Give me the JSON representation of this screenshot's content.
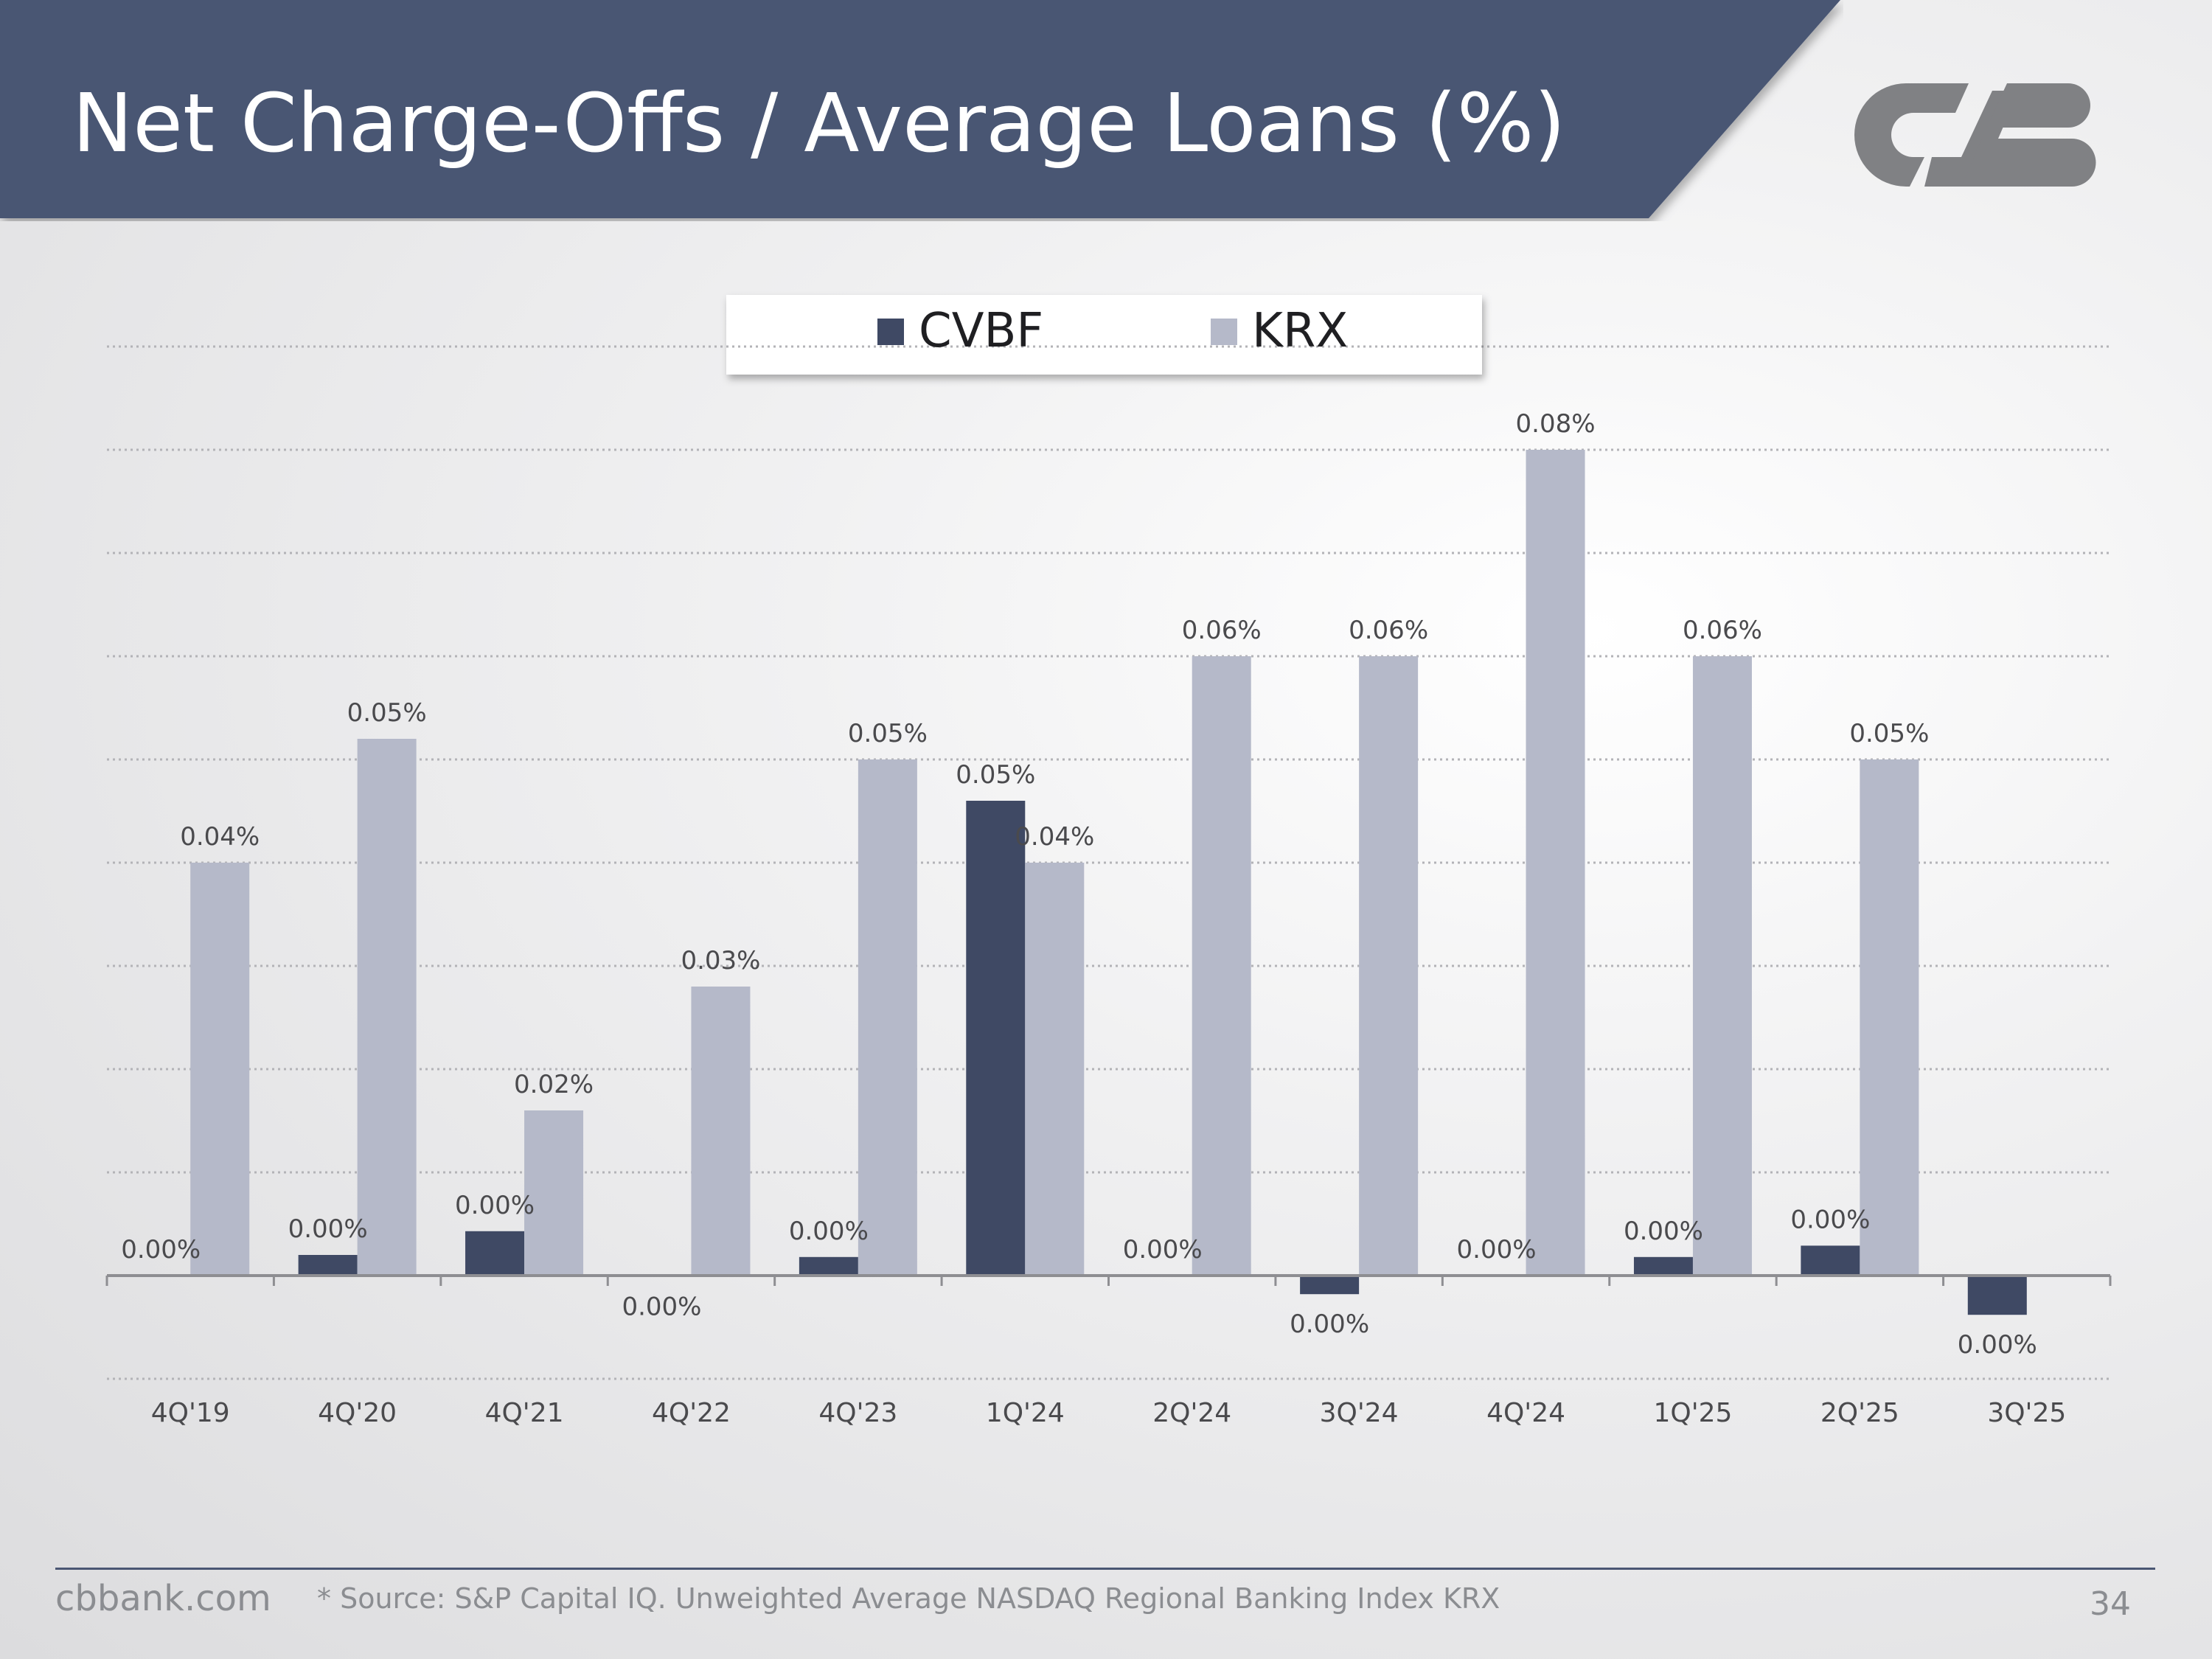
{
  "slide": {
    "title": "Net Charge-Offs / Average Loans (%)",
    "footer_site": "cbbank.com",
    "footer_source": "* Source: S&P Capital IQ. Unweighted Average NASDAQ Regional Banking Index KRX",
    "page_number": "34",
    "logo": "cvb-logo",
    "colors": {
      "banner": "#4a5673",
      "logo": "#808184"
    }
  },
  "chart_data": {
    "type": "bar",
    "categories": [
      "4Q'19",
      "4Q'20",
      "4Q'21",
      "4Q'22",
      "4Q'23",
      "1Q'24",
      "2Q'24",
      "3Q'24",
      "4Q'24",
      "1Q'25",
      "2Q'25",
      "3Q'25"
    ],
    "series": [
      {
        "name": "CVBF",
        "color": "#3f4964",
        "values": [
          0.0,
          0.002,
          0.0043,
          -0.0001,
          0.0018,
          0.046,
          0.0,
          -0.0018,
          0.0,
          0.0018,
          0.0029,
          -0.0038
        ],
        "labels": [
          "0.00%",
          "0.00%",
          "0.00%",
          "0.00%",
          "0.00%",
          "0.05%",
          "0.00%",
          "0.00%",
          "0.00%",
          "0.00%",
          "0.00%",
          "0.00%"
        ]
      },
      {
        "name": "KRX",
        "color": "#b5b9c9",
        "values": [
          0.04,
          0.052,
          0.016,
          0.028,
          0.05,
          0.04,
          0.06,
          0.06,
          0.08,
          0.06,
          0.05,
          null
        ],
        "labels": [
          "0.04%",
          "0.05%",
          "0.02%",
          "0.03%",
          "0.05%",
          "0.04%",
          "0.06%",
          "0.06%",
          "0.08%",
          "0.06%",
          "0.05%",
          ""
        ]
      }
    ],
    "ylim": [
      -0.01,
      0.09
    ],
    "grid": true,
    "legend": "top-center"
  }
}
